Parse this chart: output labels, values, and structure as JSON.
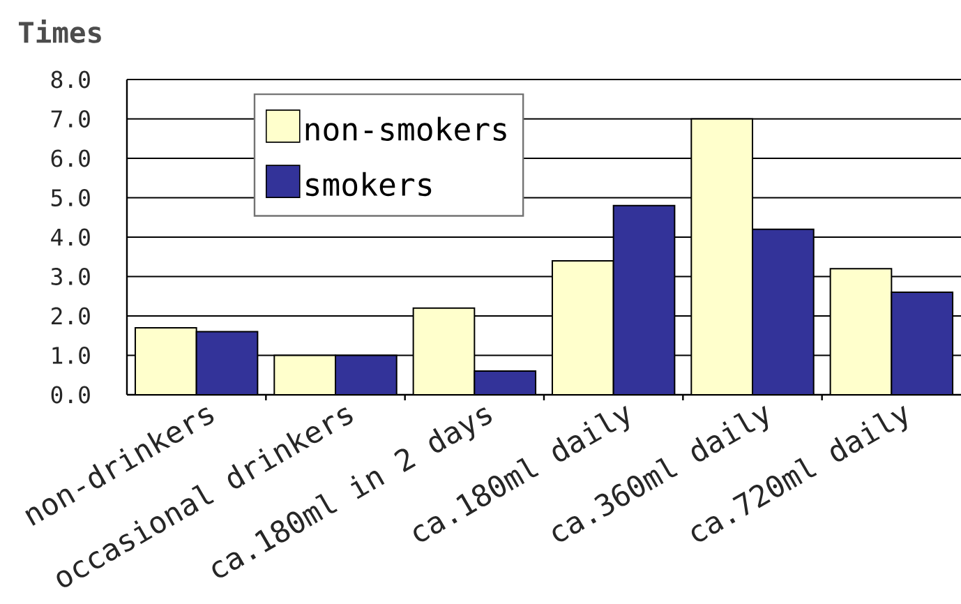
{
  "chart_data": {
    "type": "bar",
    "ylabel": "Times",
    "categories": [
      "non-drinkers",
      "occasional drinkers",
      "ca.180ml in 2 days",
      "ca.180ml daily",
      "ca.360ml daily",
      "ca.720ml daily"
    ],
    "series": [
      {
        "name": "non-smokers",
        "color": "#ffffcc",
        "values": [
          1.7,
          1.0,
          2.2,
          3.4,
          7.0,
          3.2
        ]
      },
      {
        "name": "smokers",
        "color": "#333399",
        "values": [
          1.6,
          1.0,
          0.6,
          4.8,
          4.2,
          2.6
        ]
      }
    ],
    "ylim": [
      0,
      8
    ],
    "yticks": [
      {
        "value": 0,
        "label": "0.0"
      },
      {
        "value": 1,
        "label": "1.0"
      },
      {
        "value": 2,
        "label": "2.0"
      },
      {
        "value": 3,
        "label": "3.0"
      },
      {
        "value": 4,
        "label": "4.0"
      },
      {
        "value": 5,
        "label": "5.0"
      },
      {
        "value": 6,
        "label": "6.0"
      },
      {
        "value": 7,
        "label": "7.0"
      },
      {
        "value": 8,
        "label": "8.0"
      }
    ],
    "grid": "y",
    "legend": "top left"
  }
}
